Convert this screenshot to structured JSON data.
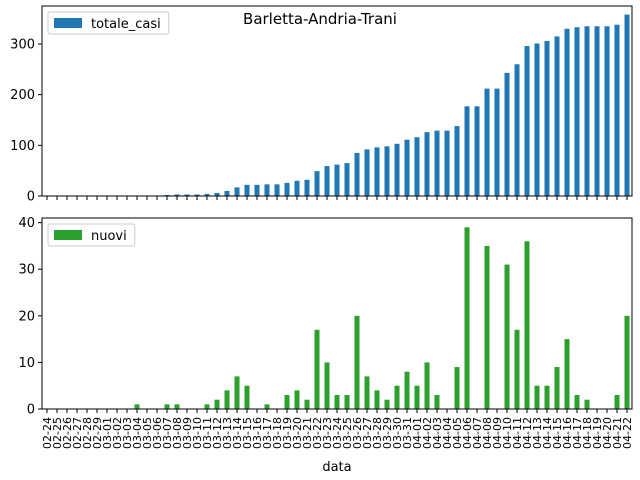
{
  "figure_title": "Barletta-Andria-Trani",
  "chart_data": [
    {
      "type": "bar",
      "title": "Barletta-Andria-Trani",
      "xlabel": "",
      "ylabel": "",
      "ylim": [
        0,
        375
      ],
      "yticks": [
        0,
        100,
        200,
        300
      ],
      "grid": false,
      "legend_position": "top-left",
      "x_tick_labels_visible": false,
      "categories": [
        "02-24",
        "02-25",
        "02-26",
        "02-27",
        "02-28",
        "02-29",
        "03-01",
        "03-02",
        "03-03",
        "03-04",
        "03-05",
        "03-06",
        "03-07",
        "03-08",
        "03-09",
        "03-10",
        "03-11",
        "03-12",
        "03-13",
        "03-14",
        "03-15",
        "03-16",
        "03-17",
        "03-18",
        "03-19",
        "03-20",
        "03-21",
        "03-22",
        "03-23",
        "03-24",
        "03-25",
        "03-26",
        "03-27",
        "03-28",
        "03-29",
        "03-30",
        "03-31",
        "04-01",
        "04-02",
        "04-03",
        "04-04",
        "04-05",
        "04-06",
        "04-07",
        "04-08",
        "04-09",
        "04-10",
        "04-11",
        "04-12",
        "04-13",
        "04-14",
        "04-15",
        "04-16",
        "04-17",
        "04-18",
        "04-19",
        "04-20",
        "04-21",
        "04-22"
      ],
      "series": [
        {
          "name": "totale_casi",
          "color": "#1f77b4",
          "values": [
            0,
            0,
            0,
            0,
            0,
            0,
            0,
            0,
            0,
            1,
            1,
            1,
            2,
            3,
            3,
            3,
            4,
            6,
            10,
            17,
            22,
            22,
            23,
            23,
            26,
            30,
            32,
            49,
            59,
            62,
            65,
            85,
            92,
            96,
            98,
            103,
            111,
            116,
            126,
            129,
            129,
            138,
            177,
            177,
            212,
            212,
            243,
            260,
            296,
            301,
            306,
            315,
            330,
            333,
            335,
            335,
            335,
            338,
            358
          ]
        }
      ]
    },
    {
      "type": "bar",
      "xlabel": "data",
      "ylabel": "",
      "ylim": [
        0,
        41
      ],
      "yticks": [
        0,
        10,
        20,
        30,
        40
      ],
      "grid": false,
      "legend_position": "top-left",
      "categories": [
        "02-24",
        "02-25",
        "02-26",
        "02-27",
        "02-28",
        "02-29",
        "03-01",
        "03-02",
        "03-03",
        "03-04",
        "03-05",
        "03-06",
        "03-07",
        "03-08",
        "03-09",
        "03-10",
        "03-11",
        "03-12",
        "03-13",
        "03-14",
        "03-15",
        "03-16",
        "03-17",
        "03-18",
        "03-19",
        "03-20",
        "03-21",
        "03-22",
        "03-23",
        "03-24",
        "03-25",
        "03-26",
        "03-27",
        "03-28",
        "03-29",
        "03-30",
        "03-31",
        "04-01",
        "04-02",
        "04-03",
        "04-04",
        "04-05",
        "04-06",
        "04-07",
        "04-08",
        "04-09",
        "04-10",
        "04-11",
        "04-12",
        "04-13",
        "04-14",
        "04-15",
        "04-16",
        "04-17",
        "04-18",
        "04-19",
        "04-20",
        "04-21",
        "04-22"
      ],
      "series": [
        {
          "name": "nuovi",
          "color": "#2ca02c",
          "values": [
            0,
            0,
            0,
            0,
            0,
            0,
            0,
            0,
            0,
            1,
            0,
            0,
            1,
            1,
            0,
            0,
            1,
            2,
            4,
            7,
            5,
            0,
            1,
            0,
            3,
            4,
            2,
            17,
            10,
            3,
            3,
            20,
            7,
            4,
            2,
            5,
            8,
            5,
            10,
            3,
            0,
            9,
            39,
            0,
            35,
            0,
            31,
            17,
            36,
            5,
            5,
            9,
            15,
            3,
            2,
            0,
            0,
            3,
            20
          ]
        }
      ]
    }
  ]
}
